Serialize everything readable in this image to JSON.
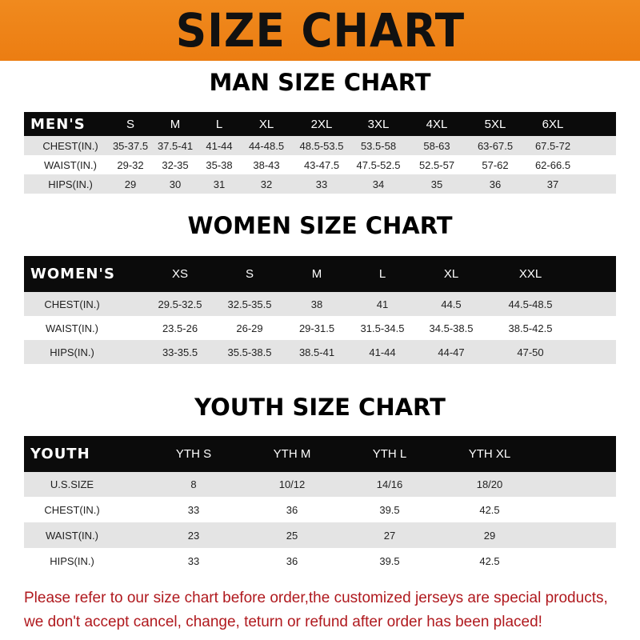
{
  "banner": "SIZE CHART",
  "men": {
    "title": "MAN SIZE CHART",
    "header": [
      "MEN'S",
      "S",
      "M",
      "L",
      "XL",
      "2XL",
      "3XL",
      "4XL",
      "5XL",
      "6XL"
    ],
    "rows": [
      [
        "CHEST(IN.)",
        "35-37.5",
        "37.5-41",
        "41-44",
        "44-48.5",
        "48.5-53.5",
        "53.5-58",
        "58-63",
        "63-67.5",
        "67.5-72"
      ],
      [
        "WAIST(IN.)",
        "29-32",
        "32-35",
        "35-38",
        "38-43",
        "43-47.5",
        "47.5-52.5",
        "52.5-57",
        "57-62",
        "62-66.5"
      ],
      [
        "HIPS(IN.)",
        "29",
        "30",
        "31",
        "32",
        "33",
        "34",
        "35",
        "36",
        "37"
      ]
    ]
  },
  "women": {
    "title": "WOMEN SIZE CHART",
    "header": [
      "WOMEN'S",
      "XS",
      "S",
      "M",
      "L",
      "XL",
      "XXL"
    ],
    "rows": [
      [
        "CHEST(IN.)",
        "29.5-32.5",
        "32.5-35.5",
        "38",
        "41",
        "44.5",
        "44.5-48.5"
      ],
      [
        "WAIST(IN.)",
        "23.5-26",
        "26-29",
        "29-31.5",
        "31.5-34.5",
        "34.5-38.5",
        "38.5-42.5"
      ],
      [
        "HIPS(IN.)",
        "33-35.5",
        "35.5-38.5",
        "38.5-41",
        "41-44",
        "44-47",
        "47-50"
      ]
    ]
  },
  "youth": {
    "title": "YOUTH SIZE CHART",
    "header": [
      "YOUTH",
      "YTH S",
      "YTH M",
      "YTH L",
      "YTH XL"
    ],
    "rows": [
      [
        "U.S.SIZE",
        "8",
        "10/12",
        "14/16",
        "18/20"
      ],
      [
        "CHEST(IN.)",
        "33",
        "36",
        "39.5",
        "42.5"
      ],
      [
        "WAIST(IN.)",
        "23",
        "25",
        "27",
        "29"
      ],
      [
        "HIPS(IN.)",
        "33",
        "36",
        "39.5",
        "42.5"
      ]
    ]
  },
  "notice": {
    "line1": "Please refer to our size chart before order,the customized jerseys are special products,",
    "line2": "we don't accept cancel, change, teturn or refund after order has been placed!"
  },
  "colors": {
    "banner": "#ec7d12",
    "header_row": "#0b0b0b",
    "stripe": "#e4e4e4",
    "notice": "#b0191e"
  }
}
